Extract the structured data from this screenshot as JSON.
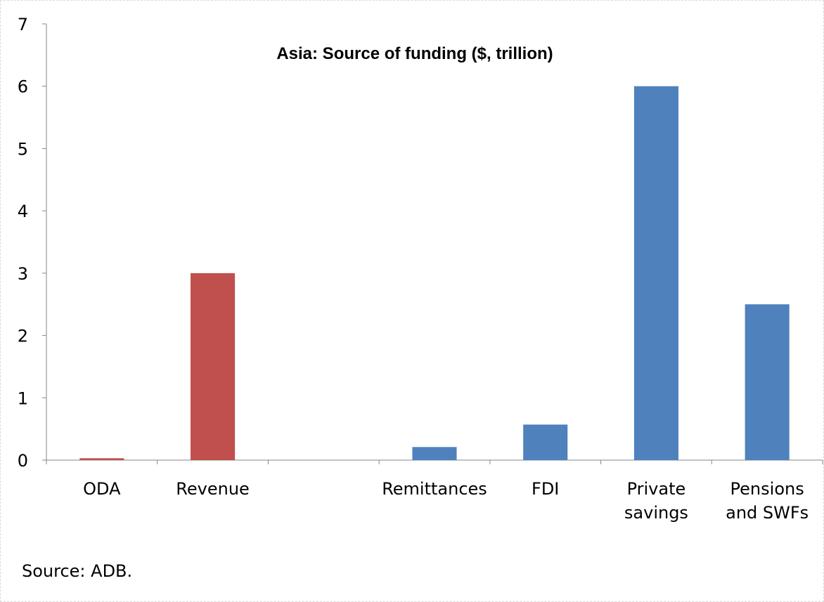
{
  "chart_data": {
    "type": "bar",
    "title": "Asia: Source of funding ($, trillion)",
    "xlabel": "",
    "ylabel": "",
    "ylim": [
      0,
      7
    ],
    "yticks": [
      0,
      1,
      2,
      3,
      4,
      5,
      6,
      7
    ],
    "grid": false,
    "legend": "none",
    "categories": [
      [
        "ODA"
      ],
      [
        "Revenue"
      ],
      [
        ""
      ],
      [
        "Remittances"
      ],
      [
        "FDI"
      ],
      [
        "Private",
        "savings"
      ],
      [
        "Pensions",
        "and SWFs"
      ]
    ],
    "values": [
      0.03,
      3.0,
      null,
      0.21,
      0.57,
      6.0,
      2.5
    ],
    "colors": [
      "#c0504d",
      "#c0504d",
      null,
      "#4f81bd",
      "#4f81bd",
      "#4f81bd",
      "#4f81bd"
    ]
  },
  "source_note": "Source: ADB."
}
